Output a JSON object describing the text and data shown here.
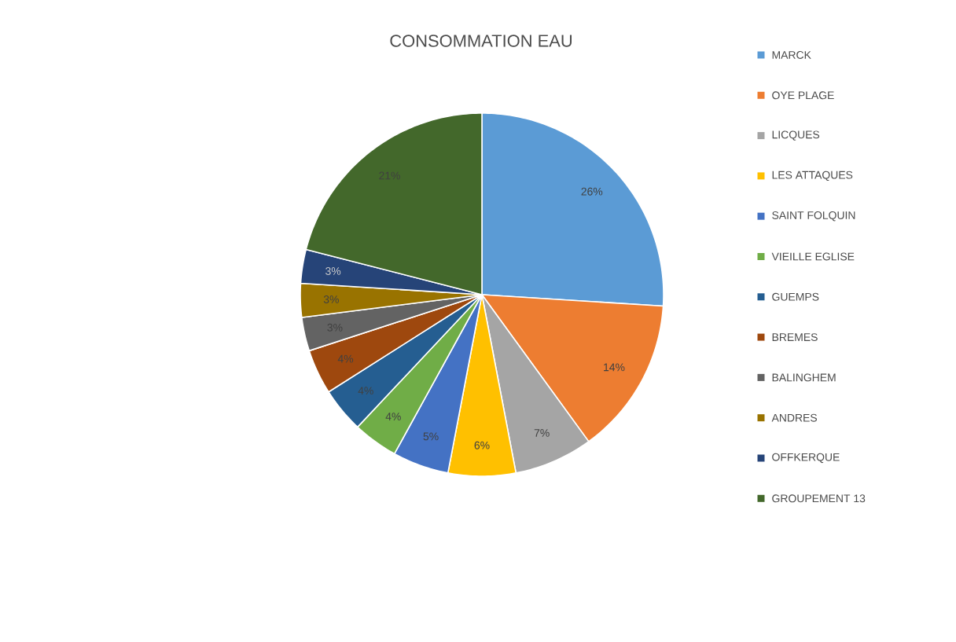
{
  "chart_data": {
    "type": "pie",
    "title": "CONSOMMATION EAU",
    "categories": [
      "MARCK",
      "OYE PLAGE",
      "LICQUES",
      "LES ATTAQUES",
      "SAINT FOLQUIN",
      "VIEILLE EGLISE",
      "GUEMPS",
      "BREMES",
      "BALINGHEM",
      "ANDRES",
      "OFFKERQUE",
      "GROUPEMENT 13"
    ],
    "values": [
      26,
      14,
      7,
      6,
      5,
      4,
      4,
      4,
      3,
      3,
      3,
      21
    ],
    "colors": [
      "#5b9bd5",
      "#ed7d31",
      "#a5a5a5",
      "#ffc000",
      "#4472c4",
      "#70ad47",
      "#255e91",
      "#9e480e",
      "#636363",
      "#997300",
      "#264478",
      "#43682b"
    ],
    "value_labels": [
      "26%",
      "14%",
      "7%",
      "6%",
      "5%",
      "4%",
      "4%",
      "4%",
      "3%",
      "3%",
      "3%",
      "21%"
    ],
    "legend": "right"
  }
}
